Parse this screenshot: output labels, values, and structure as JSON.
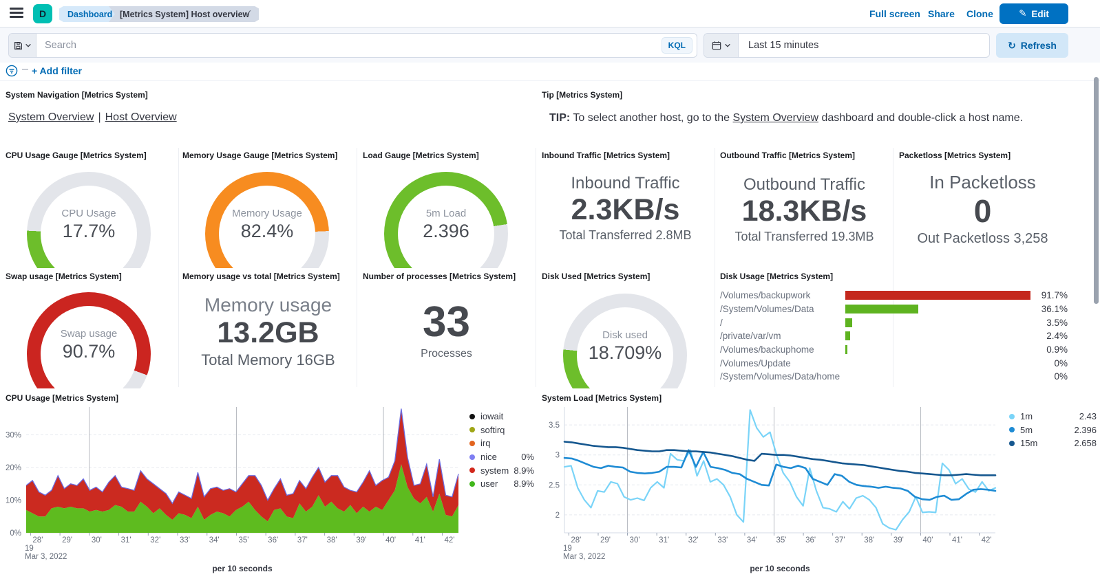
{
  "header": {
    "breadcrumb1": "Dashboard",
    "breadcrumb2": "[Metrics System] Host overview",
    "logo_letter": "D",
    "check_icon": "✓",
    "links": {
      "full_screen": "Full screen",
      "share": "Share",
      "clone": "Clone"
    },
    "edit_label": "Edit",
    "edit_icon": "✎",
    "accent_color": "#0071c2"
  },
  "query_bar": {
    "search_placeholder": "Search",
    "kql_label": "KQL",
    "time_range": "Last 15 minutes",
    "refresh_label": "Refresh",
    "refresh_icon": "↻"
  },
  "filter_bar": {
    "add_filter_label": "+ Add filter"
  },
  "panels": {
    "system_navigation": {
      "title": "System Navigation [Metrics System]",
      "link1": "System Overview",
      "separator": "|",
      "link2": "Host Overview"
    },
    "tip": {
      "title": "Tip [Metrics System]",
      "bold": "TIP:",
      "pre": " To select another host, go to the ",
      "link": "System Overview",
      "post": " dashboard and double-click a host name."
    },
    "cpu_gauge": {
      "title": "CPU Usage Gauge [Metrics System]",
      "label": "CPU Usage",
      "value": "17.7%",
      "fraction": 0.177,
      "color": "#6dbe2b"
    },
    "memory_gauge": {
      "title": "Memory Usage Gauge [Metrics System]",
      "label": "Memory Usage",
      "value": "82.4%",
      "fraction": 0.824,
      "color": "#f78c20"
    },
    "load_gauge": {
      "title": "Load Gauge [Metrics System]",
      "label": "5m Load",
      "value": "2.396",
      "fraction": 0.8,
      "color": "#6dbe2b"
    },
    "swap_gauge": {
      "title": "Swap usage [Metrics System]",
      "label": "Swap usage",
      "value": "90.7%",
      "fraction": 0.907,
      "color": "#cb2520"
    },
    "disk_gauge": {
      "title": "Disk Used [Metrics System]",
      "label": "Disk used",
      "value": "18.709%",
      "fraction": 0.187,
      "color": "#6dbe2b"
    },
    "inbound": {
      "title": "Inbound Traffic [Metrics System]",
      "label": "Inbound Traffic",
      "value": "2.3KB/s",
      "sub": "Total Transferred 2.8MB"
    },
    "outbound": {
      "title": "Outbound Traffic [Metrics System]",
      "label": "Outbound Traffic",
      "value": "18.3KB/s",
      "sub": "Total Transferred 19.3MB"
    },
    "packetloss": {
      "title": "Packetloss [Metrics System]",
      "label": "In Packetloss",
      "value": "0",
      "sub": "Out Packetloss 3,258"
    },
    "memory_total": {
      "title": "Memory usage vs total [Metrics System]",
      "label": "Memory usage",
      "value": "13.2GB",
      "sub": "Total Memory 16GB"
    },
    "processes": {
      "title": "Number of processes [Metrics System]",
      "value": "33",
      "label": "Processes"
    },
    "disk_usage": {
      "title": "Disk Usage [Metrics System]",
      "rows": [
        {
          "path": "/Volumes/backupwork",
          "pct": 91.7,
          "pct_label": "91.7%",
          "color": "#c4281d"
        },
        {
          "path": "/System/Volumes/Data",
          "pct": 36.1,
          "pct_label": "36.1%",
          "color": "#5eb320"
        },
        {
          "path": "/",
          "pct": 3.5,
          "pct_label": "3.5%",
          "color": "#5eb320"
        },
        {
          "path": "/private/var/vm",
          "pct": 2.4,
          "pct_label": "2.4%",
          "color": "#5eb320"
        },
        {
          "path": "/Volumes/backuphome",
          "pct": 0.9,
          "pct_label": "0.9%",
          "color": "#5eb320"
        },
        {
          "path": "/Volumes/Update",
          "pct": 0,
          "pct_label": "0%",
          "color": "#5eb320"
        },
        {
          "path": "/System/Volumes/Data/home",
          "pct": 0,
          "pct_label": "0%",
          "color": "#5eb320"
        }
      ]
    }
  },
  "chart_data": [
    {
      "type": "area",
      "title": "CPU Usage [Metrics System]",
      "xlabel": "per 10 seconds",
      "date_line1": "19",
      "date_line2": "Mar 3, 2022",
      "xticks": [
        "28'",
        "29'",
        "30'",
        "31'",
        "32'",
        "33'",
        "34'",
        "35'",
        "36'",
        "37'",
        "38'",
        "39'",
        "40'",
        "41'",
        "42'"
      ],
      "xtick_first": 28,
      "xlim": [
        27.85,
        42.55
      ],
      "ylim": [
        0,
        38.5
      ],
      "yticks": [
        {
          "v": 0,
          "label": "0%"
        },
        {
          "v": 10,
          "label": "10%"
        },
        {
          "v": 20,
          "label": "20%"
        },
        {
          "v": 30,
          "label": "30%"
        }
      ],
      "vlines": [
        30,
        35,
        40
      ],
      "left_axis": false,
      "top_line_color": "#6b6be0",
      "series": [
        {
          "name": "user",
          "color": "#5ebb1f",
          "values": [
            7,
            6,
            5,
            5,
            7.5,
            8,
            7.5,
            8,
            7.5,
            7.5,
            6.5,
            7,
            6.5,
            7,
            8.5,
            8,
            6.5,
            6.5,
            9.5,
            8,
            6,
            7.5,
            5.5,
            4,
            6,
            5.5,
            4.5,
            8,
            4,
            5.5,
            6.5,
            6,
            5,
            7,
            8,
            9.5,
            7,
            5,
            3.5,
            7,
            7.5,
            5,
            4.5,
            9,
            6.5,
            8,
            11.5,
            8,
            9.5,
            7.5,
            6.5,
            8.5,
            6,
            8,
            6.5,
            8,
            7,
            10,
            13,
            21,
            14,
            10.5,
            9,
            11,
            6.5,
            12,
            5.5,
            5,
            8.5
          ]
        },
        {
          "name": "system-stack-top",
          "color": "#cb2a20",
          "values": [
            14.5,
            16,
            12.5,
            11.5,
            13,
            17.5,
            13.5,
            15,
            14.5,
            16.5,
            13,
            14,
            12.5,
            15.5,
            17.5,
            14,
            13.5,
            13,
            19,
            16.5,
            15,
            13.5,
            12,
            9,
            12.5,
            11.5,
            10.5,
            18.5,
            11,
            13.5,
            14,
            13,
            13.5,
            12.5,
            15,
            17.5,
            17.5,
            14.5,
            10,
            13.5,
            16.5,
            11.5,
            12,
            16,
            13.5,
            17,
            20,
            15.5,
            17.5,
            17.5,
            14,
            13,
            12.5,
            15.5,
            19,
            14.5,
            16,
            17,
            22,
            38,
            23,
            14.5,
            15,
            21,
            11,
            22.5,
            11.5,
            11,
            18
          ]
        }
      ],
      "legend": [
        {
          "label": "iowait",
          "color": "#111111",
          "value": ""
        },
        {
          "label": "softirq",
          "color": "#9fa616",
          "value": ""
        },
        {
          "label": "irq",
          "color": "#e2641f",
          "value": ""
        },
        {
          "label": "nice",
          "color": "#7e7ef2",
          "value": "0%"
        },
        {
          "label": "system",
          "color": "#d2281c",
          "value": "8.9%"
        },
        {
          "label": "user",
          "color": "#41b71c",
          "value": "8.9%"
        }
      ]
    },
    {
      "type": "line",
      "title": "System Load [Metrics System]",
      "xlabel": "per 10 seconds",
      "date_line1": "19",
      "date_line2": "Mar 3, 2022",
      "xticks": [
        "28'",
        "29'",
        "30'",
        "31'",
        "32'",
        "33'",
        "34'",
        "35'",
        "36'",
        "37'",
        "38'",
        "39'",
        "40'",
        "41'",
        "42'"
      ],
      "xtick_first": 28,
      "xlim": [
        27.85,
        42.55
      ],
      "ylim": [
        1.7,
        3.8
      ],
      "yticks": [
        {
          "v": 2,
          "label": "2"
        },
        {
          "v": 2.5,
          "label": "2.5"
        },
        {
          "v": 3,
          "label": "3"
        },
        {
          "v": 3.5,
          "label": "3.5"
        }
      ],
      "vlines": [
        30,
        35,
        40
      ],
      "left_axis": true,
      "series": [
        {
          "name": "1m",
          "color": "#7ad4f8",
          "width": 2.2,
          "values": [
            2.8,
            2.82,
            2.45,
            2.25,
            2.12,
            2.4,
            2.38,
            2.55,
            2.52,
            2.3,
            2.25,
            2.28,
            2.24,
            2.45,
            2.55,
            2.45,
            3.02,
            2.92,
            2.9,
            3.08,
            2.65,
            2.9,
            2.55,
            2.6,
            2.5,
            2.3,
            2.0,
            1.88,
            3.75,
            3.45,
            3.3,
            3.38,
            3.0,
            2.7,
            2.55,
            2.3,
            2.15,
            2.78,
            2.4,
            2.12,
            2.1,
            2.05,
            2.22,
            2.1,
            2.28,
            2.32,
            2.25,
            2.12,
            1.85,
            1.78,
            1.75,
            1.92,
            2.05,
            2.3,
            2.04,
            2.05,
            2.04,
            2.86,
            2.75,
            2.52,
            2.6,
            2.43,
            2.38,
            2.55,
            2.4,
            2.45
          ]
        },
        {
          "name": "5m",
          "color": "#1e8bd4",
          "width": 2.6,
          "values": [
            2.95,
            2.94,
            2.9,
            2.85,
            2.8,
            2.78,
            2.82,
            2.8,
            2.79,
            2.72,
            2.7,
            2.69,
            2.7,
            2.72,
            2.8,
            2.8,
            2.79,
            3.08,
            2.8,
            3.05,
            2.8,
            2.78,
            2.75,
            2.7,
            2.68,
            2.6,
            2.55,
            2.5,
            2.49,
            2.84,
            2.8,
            2.78,
            2.82,
            2.78,
            2.6,
            2.55,
            2.5,
            2.68,
            2.65,
            2.55,
            2.5,
            2.48,
            2.47,
            2.45,
            2.47,
            2.45,
            2.44,
            2.4,
            2.3,
            2.26,
            2.25,
            2.3,
            2.32,
            2.25,
            2.26,
            2.35,
            2.42,
            2.43,
            2.42,
            2.4
          ]
        },
        {
          "name": "15m",
          "color": "#15578f",
          "width": 2.6,
          "values": [
            3.22,
            3.21,
            3.19,
            3.17,
            3.15,
            3.14,
            3.13,
            3.13,
            3.12,
            3.1,
            3.08,
            3.07,
            3.06,
            3.06,
            3.08,
            3.08,
            3.07,
            3.06,
            3.06,
            3.05,
            3.04,
            3.02,
            3.0,
            2.98,
            2.95,
            2.92,
            2.9,
            3.02,
            3.01,
            3.0,
            3.0,
            2.99,
            2.97,
            2.95,
            2.93,
            2.92,
            2.9,
            2.88,
            2.86,
            2.85,
            2.84,
            2.83,
            2.81,
            2.79,
            2.77,
            2.75,
            2.73,
            2.72,
            2.7,
            2.69,
            2.68,
            2.67,
            2.66,
            2.66,
            2.67,
            2.68,
            2.67,
            2.66,
            2.66,
            2.66
          ]
        }
      ],
      "legend": [
        {
          "label": "1m",
          "color": "#7ad4f8",
          "value": "2.43"
        },
        {
          "label": "5m",
          "color": "#1e8bd4",
          "value": "2.396"
        },
        {
          "label": "15m",
          "color": "#15578f",
          "value": "2.658"
        }
      ]
    }
  ]
}
